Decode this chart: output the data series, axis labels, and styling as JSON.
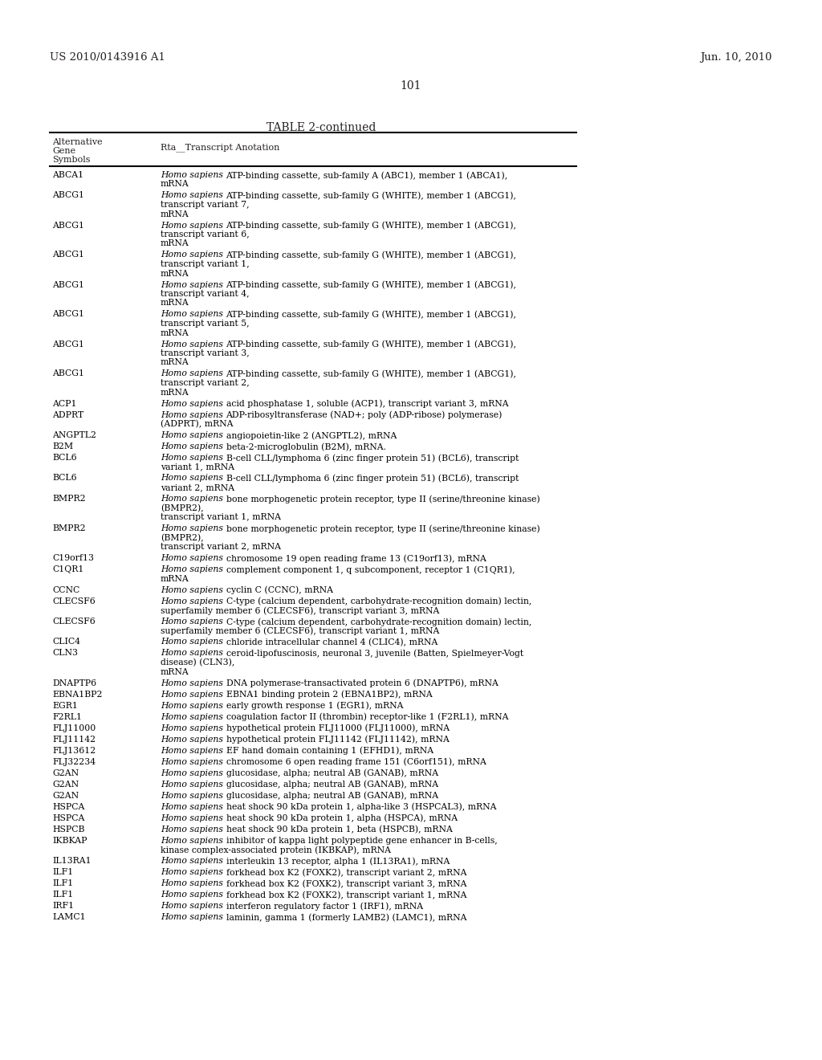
{
  "header_left": "US 2010/0143916 A1",
  "header_right": "Jun. 10, 2010",
  "page_number": "101",
  "table_title": "TABLE 2-continued",
  "col1_header_lines": [
    "Alternative",
    "Gene",
    "Symbols"
  ],
  "col2_header": "Rta__Transcript Anotation",
  "background_color": "#ffffff",
  "text_color": "#231f20",
  "rows": [
    {
      "symbol": "ABCA1",
      "annotation": [
        [
          "i",
          "Homo sapiens "
        ],
        [
          "n",
          "ATP-binding cassette, sub-family A (ABC1), member 1 (ABCA1),"
        ],
        [
          "n",
          "mRNA"
        ]
      ]
    },
    {
      "symbol": "ABCG1",
      "annotation": [
        [
          "i",
          "Homo sapiens "
        ],
        [
          "n",
          "ATP-binding cassette, sub-family G (WHITE), member 1 (ABCG1),"
        ],
        [
          "n",
          "transcript variant 7,"
        ],
        [
          "n",
          "mRNA"
        ]
      ]
    },
    {
      "symbol": "ABCG1",
      "annotation": [
        [
          "i",
          "Homo sapiens "
        ],
        [
          "n",
          "ATP-binding cassette, sub-family G (WHITE), member 1 (ABCG1),"
        ],
        [
          "n",
          "transcript variant 6,"
        ],
        [
          "n",
          "mRNA"
        ]
      ]
    },
    {
      "symbol": "ABCG1",
      "annotation": [
        [
          "i",
          "Homo sapiens "
        ],
        [
          "n",
          "ATP-binding cassette, sub-family G (WHITE), member 1 (ABCG1),"
        ],
        [
          "n",
          "transcript variant 1,"
        ],
        [
          "n",
          "mRNA"
        ]
      ]
    },
    {
      "symbol": "ABCG1",
      "annotation": [
        [
          "i",
          "Homo sapiens "
        ],
        [
          "n",
          "ATP-binding cassette, sub-family G (WHITE), member 1 (ABCG1),"
        ],
        [
          "n",
          "transcript variant 4,"
        ],
        [
          "n",
          "mRNA"
        ]
      ]
    },
    {
      "symbol": "ABCG1",
      "annotation": [
        [
          "i",
          "Homo sapiens "
        ],
        [
          "n",
          "ATP-binding cassette, sub-family G (WHITE), member 1 (ABCG1),"
        ],
        [
          "n",
          "transcript variant 5,"
        ],
        [
          "n",
          "mRNA"
        ]
      ]
    },
    {
      "symbol": "ABCG1",
      "annotation": [
        [
          "i",
          "Homo sapiens "
        ],
        [
          "n",
          "ATP-binding cassette, sub-family G (WHITE), member 1 (ABCG1),"
        ],
        [
          "n",
          "transcript variant 3,"
        ],
        [
          "n",
          "mRNA"
        ]
      ]
    },
    {
      "symbol": "ABCG1",
      "annotation": [
        [
          "i",
          "Homo sapiens "
        ],
        [
          "n",
          "ATP-binding cassette, sub-family G (WHITE), member 1 (ABCG1),"
        ],
        [
          "n",
          "transcript variant 2,"
        ],
        [
          "n",
          "mRNA"
        ]
      ]
    },
    {
      "symbol": "ACP1",
      "annotation": [
        [
          "i",
          "Homo sapiens "
        ],
        [
          "n",
          "acid phosphatase 1, soluble (ACP1), transcript variant 3, mRNA"
        ]
      ]
    },
    {
      "symbol": "ADPRT",
      "annotation": [
        [
          "i",
          "Homo sapiens "
        ],
        [
          "n",
          "ADP-ribosyltransferase (NAD+; poly (ADP-ribose) polymerase)"
        ],
        [
          "n",
          "(ADPRT), mRNA"
        ]
      ]
    },
    {
      "symbol": "ANGPTL2",
      "annotation": [
        [
          "i",
          "Homo sapiens "
        ],
        [
          "n",
          "angiopoietin-like 2 (ANGPTL2), mRNA"
        ]
      ]
    },
    {
      "symbol": "B2M",
      "annotation": [
        [
          "i",
          "Homo sapiens "
        ],
        [
          "n",
          "beta-2-microglobulin (B2M), mRNA."
        ]
      ]
    },
    {
      "symbol": "BCL6",
      "annotation": [
        [
          "i",
          "Homo sapiens "
        ],
        [
          "n",
          "B-cell CLL/lymphoma 6 (zinc finger protein 51) (BCL6), transcript"
        ],
        [
          "n",
          "variant 1, mRNA"
        ]
      ]
    },
    {
      "symbol": "BCL6",
      "annotation": [
        [
          "i",
          "Homo sapiens "
        ],
        [
          "n",
          "B-cell CLL/lymphoma 6 (zinc finger protein 51) (BCL6), transcript"
        ],
        [
          "n",
          "variant 2, mRNA"
        ]
      ]
    },
    {
      "symbol": "BMPR2",
      "annotation": [
        [
          "i",
          "Homo sapiens "
        ],
        [
          "n",
          "bone morphogenetic protein receptor, type II (serine/threonine kinase)"
        ],
        [
          "n",
          "(BMPR2),"
        ],
        [
          "n",
          "transcript variant 1, mRNA"
        ]
      ]
    },
    {
      "symbol": "BMPR2",
      "annotation": [
        [
          "i",
          "Homo sapiens "
        ],
        [
          "n",
          "bone morphogenetic protein receptor, type II (serine/threonine kinase)"
        ],
        [
          "n",
          "(BMPR2),"
        ],
        [
          "n",
          "transcript variant 2, mRNA"
        ]
      ]
    },
    {
      "symbol": "C19orf13",
      "annotation": [
        [
          "i",
          "Homo sapiens "
        ],
        [
          "n",
          "chromosome 19 open reading frame 13 (C19orf13), mRNA"
        ]
      ]
    },
    {
      "symbol": "C1QR1",
      "annotation": [
        [
          "i",
          "Homo sapiens "
        ],
        [
          "n",
          "complement component 1, q subcomponent, receptor 1 (C1QR1),"
        ],
        [
          "n",
          "mRNA"
        ]
      ]
    },
    {
      "symbol": "CCNC",
      "annotation": [
        [
          "i",
          "Homo sapiens "
        ],
        [
          "n",
          "cyclin C (CCNC), mRNA"
        ]
      ]
    },
    {
      "symbol": "CLECSF6",
      "annotation": [
        [
          "i",
          "Homo sapiens "
        ],
        [
          "n",
          "C-type (calcium dependent, carbohydrate-recognition domain) lectin,"
        ],
        [
          "n",
          "superfamily member 6 (CLECSF6), transcript variant 3, mRNA"
        ]
      ]
    },
    {
      "symbol": "CLECSF6",
      "annotation": [
        [
          "i",
          "Homo sapiens "
        ],
        [
          "n",
          "C-type (calcium dependent, carbohydrate-recognition domain) lectin,"
        ],
        [
          "n",
          "superfamily member 6 (CLECSF6), transcript variant 1, mRNA"
        ]
      ]
    },
    {
      "symbol": "CLIC4",
      "annotation": [
        [
          "i",
          "Homo sapiens "
        ],
        [
          "n",
          "chloride intracellular channel 4 (CLIC4), mRNA"
        ]
      ]
    },
    {
      "symbol": "CLN3",
      "annotation": [
        [
          "i",
          "Homo sapiens "
        ],
        [
          "n",
          "ceroid-lipofuscinosis, neuronal 3, juvenile (Batten, Spielmeyer-Vogt"
        ],
        [
          "n",
          "disease) (CLN3),"
        ],
        [
          "n",
          "mRNA"
        ]
      ]
    },
    {
      "symbol": "DNAPTP6",
      "annotation": [
        [
          "i",
          "Homo sapiens "
        ],
        [
          "n",
          "DNA polymerase-transactivated protein 6 (DNAPTP6), mRNA"
        ]
      ]
    },
    {
      "symbol": "EBNA1BP2",
      "annotation": [
        [
          "i",
          "Homo sapiens "
        ],
        [
          "n",
          "EBNA1 binding protein 2 (EBNA1BP2), mRNA"
        ]
      ]
    },
    {
      "symbol": "EGR1",
      "annotation": [
        [
          "i",
          "Homo sapiens "
        ],
        [
          "n",
          "early growth response 1 (EGR1), mRNA"
        ]
      ]
    },
    {
      "symbol": "F2RL1",
      "annotation": [
        [
          "i",
          "Homo sapiens "
        ],
        [
          "n",
          "coagulation factor II (thrombin) receptor-like 1 (F2RL1), mRNA"
        ]
      ]
    },
    {
      "symbol": "FLJ11000",
      "annotation": [
        [
          "i",
          "Homo sapiens "
        ],
        [
          "n",
          "hypothetical protein FLJ11000 (FLJ11000), mRNA"
        ]
      ]
    },
    {
      "symbol": "FLJ11142",
      "annotation": [
        [
          "i",
          "Homo sapiens "
        ],
        [
          "n",
          "hypothetical protein FLJ11142 (FLJ11142), mRNA"
        ]
      ]
    },
    {
      "symbol": "FLJ13612",
      "annotation": [
        [
          "i",
          "Homo sapiens "
        ],
        [
          "n",
          "EF hand domain containing 1 (EFHD1), mRNA"
        ]
      ]
    },
    {
      "symbol": "FLJ32234",
      "annotation": [
        [
          "i",
          "Homo sapiens "
        ],
        [
          "n",
          "chromosome 6 open reading frame 151 (C6orf151), mRNA"
        ]
      ]
    },
    {
      "symbol": "G2AN",
      "annotation": [
        [
          "i",
          "Homo sapiens "
        ],
        [
          "n",
          "glucosidase, alpha; neutral AB (GANAB), mRNA"
        ]
      ]
    },
    {
      "symbol": "G2AN",
      "annotation": [
        [
          "i",
          "Homo sapiens "
        ],
        [
          "n",
          "glucosidase, alpha; neutral AB (GANAB), mRNA"
        ]
      ]
    },
    {
      "symbol": "G2AN",
      "annotation": [
        [
          "i",
          "Homo sapiens "
        ],
        [
          "n",
          "glucosidase, alpha; neutral AB (GANAB), mRNA"
        ]
      ]
    },
    {
      "symbol": "HSPCA",
      "annotation": [
        [
          "i",
          "Homo sapiens "
        ],
        [
          "n",
          "heat shock 90 kDa protein 1, alpha-like 3 (HSPCAL3), mRNA"
        ]
      ]
    },
    {
      "symbol": "HSPCA",
      "annotation": [
        [
          "i",
          "Homo sapiens "
        ],
        [
          "n",
          "heat shock 90 kDa protein 1, alpha (HSPCA), mRNA"
        ]
      ]
    },
    {
      "symbol": "HSPCB",
      "annotation": [
        [
          "i",
          "Homo sapiens "
        ],
        [
          "n",
          "heat shock 90 kDa protein 1, beta (HSPCB), mRNA"
        ]
      ]
    },
    {
      "symbol": "IKBKAP",
      "annotation": [
        [
          "i",
          "Homo sapiens "
        ],
        [
          "n",
          "inhibitor of kappa light polypeptide gene enhancer in B-cells,"
        ],
        [
          "n",
          "kinase complex-associated protein (IKBKAP), mRNA"
        ]
      ]
    },
    {
      "symbol": "IL13RA1",
      "annotation": [
        [
          "i",
          "Homo sapiens "
        ],
        [
          "n",
          "interleukin 13 receptor, alpha 1 (IL13RA1), mRNA"
        ]
      ]
    },
    {
      "symbol": "ILF1",
      "annotation": [
        [
          "i",
          "Homo sapiens "
        ],
        [
          "n",
          "forkhead box K2 (FOXK2), transcript variant 2, mRNA"
        ]
      ]
    },
    {
      "symbol": "ILF1",
      "annotation": [
        [
          "i",
          "Homo sapiens "
        ],
        [
          "n",
          "forkhead box K2 (FOXK2), transcript variant 3, mRNA"
        ]
      ]
    },
    {
      "symbol": "ILF1",
      "annotation": [
        [
          "i",
          "Homo sapiens "
        ],
        [
          "n",
          "forkhead box K2 (FOXK2), transcript variant 1, mRNA"
        ]
      ]
    },
    {
      "symbol": "IRF1",
      "annotation": [
        [
          "i",
          "Homo sapiens "
        ],
        [
          "n",
          "interferon regulatory factor 1 (IRF1), mRNA"
        ]
      ]
    },
    {
      "symbol": "LAMC1",
      "annotation": [
        [
          "i",
          "Homo sapiens "
        ],
        [
          "n",
          "laminin, gamma 1 (formerly LAMB2) (LAMC1), mRNA"
        ]
      ]
    }
  ]
}
